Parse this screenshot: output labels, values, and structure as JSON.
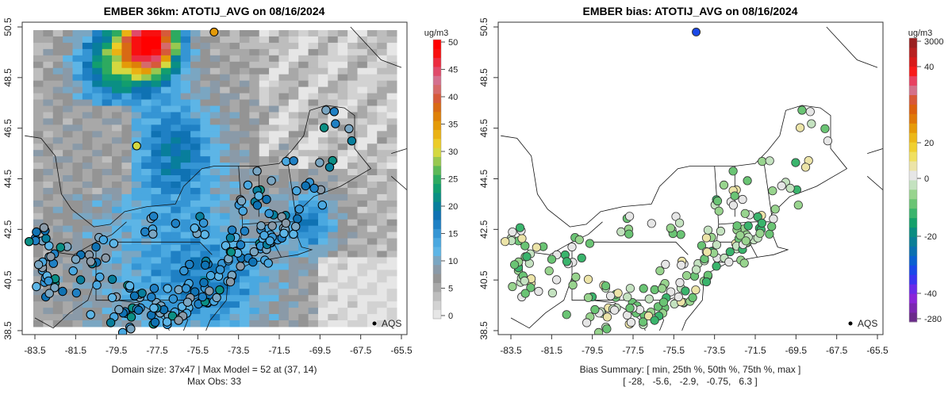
{
  "chart_data": [
    {
      "type": "heatmap",
      "title": "EMBER 36km: ATOTIJ_AVG on 08/16/2024",
      "xlabel": "",
      "ylabel": "",
      "x_ticks": [
        "-83.5",
        "-81.5",
        "-79.5",
        "-77.5",
        "-75.5",
        "-73.5",
        "-71.5",
        "-69.5",
        "-67.5",
        "-65.5"
      ],
      "y_ticks": [
        "38.5",
        "40.5",
        "42.5",
        "44.5",
        "46.5",
        "48.5",
        "50.5"
      ],
      "xlim": [
        -84,
        -65
      ],
      "ylim": [
        38.3,
        50.7
      ],
      "colorbar": {
        "unit": "ug/m3",
        "ticks": [
          "0",
          "5",
          "10",
          "15",
          "20",
          "25",
          "30",
          "35",
          "40",
          "45",
          "50"
        ],
        "range": [
          0,
          50
        ]
      },
      "legend": {
        "label": "AQS",
        "placement": "bottom-right"
      },
      "footer": [
        "Domain size: 37x47 | Max Model = 52 at (37, 14)",
        "Max Obs: 33"
      ],
      "domain_size": "37x47",
      "max_model": 52,
      "max_obs": 33
    },
    {
      "type": "scatter",
      "title": "EMBER bias: ATOTIJ_AVG on 08/16/2024",
      "xlabel": "",
      "ylabel": "",
      "x_ticks": [
        "-83.5",
        "-81.5",
        "-79.5",
        "-77.5",
        "-75.5",
        "-73.5",
        "-71.5",
        "-69.5",
        "-67.5",
        "-65.5"
      ],
      "y_ticks": [
        "38.5",
        "40.5",
        "42.5",
        "44.5",
        "46.5",
        "48.5",
        "50.5"
      ],
      "xlim": [
        -84,
        -65
      ],
      "ylim": [
        38.3,
        50.7
      ],
      "colorbar": {
        "unit": "ug/m3",
        "ticks": [
          "3000",
          "40",
          "20",
          "0",
          "-20",
          "-40",
          "-280"
        ]
      },
      "legend": {
        "label": "AQS",
        "placement": "bottom-right"
      },
      "footer": [
        "Bias Summary: [ min, 25th %, 50th %, 75th %, max ]",
        "[ -28,   -5.6,   -2.9,   -0.75,   6.3 ]"
      ],
      "bias_summary": {
        "min": -28,
        "p25": -5.6,
        "p50": -2.9,
        "p75": -0.75,
        "max": 6.3
      }
    }
  ],
  "colors": {
    "conc_scale": [
      "#e6e6e6",
      "#d2d2d2",
      "#bdbdbd",
      "#a8a8a8",
      "#949494",
      "#8a9aa8",
      "#7aa6c2",
      "#5db5e6",
      "#4aa8e0",
      "#3595d4",
      "#1f80c4",
      "#0f72b3",
      "#087e9c",
      "#0a8f84",
      "#129e6e",
      "#2daa60",
      "#5cb957",
      "#98c850",
      "#d4d840",
      "#eccc28",
      "#eab214",
      "#e49a08",
      "#de8008",
      "#d86a14",
      "#d65a3a",
      "#d66a6a",
      "#d4708e",
      "#e04a6a",
      "#ec2c40",
      "#f81010",
      "#ff0000"
    ],
    "bias_scale": [
      "#6a2a8a",
      "#7a26b0",
      "#8a24d8",
      "#6a2ae8",
      "#3a34f0",
      "#1a48e8",
      "#0a60d0",
      "#0a70b0",
      "#0a7e96",
      "#0a8c80",
      "#14a06a",
      "#3ab46c",
      "#6ac474",
      "#98d48e",
      "#c4e2c0",
      "#e6e6e6",
      "#ece4a8",
      "#f0e060",
      "#f0d030",
      "#ecb818",
      "#e69a08",
      "#e07808",
      "#dc600e",
      "#d85838",
      "#d4708a",
      "#e84060",
      "#f81a1a",
      "#d81a1a",
      "#b82020",
      "#9a2020"
    ]
  }
}
